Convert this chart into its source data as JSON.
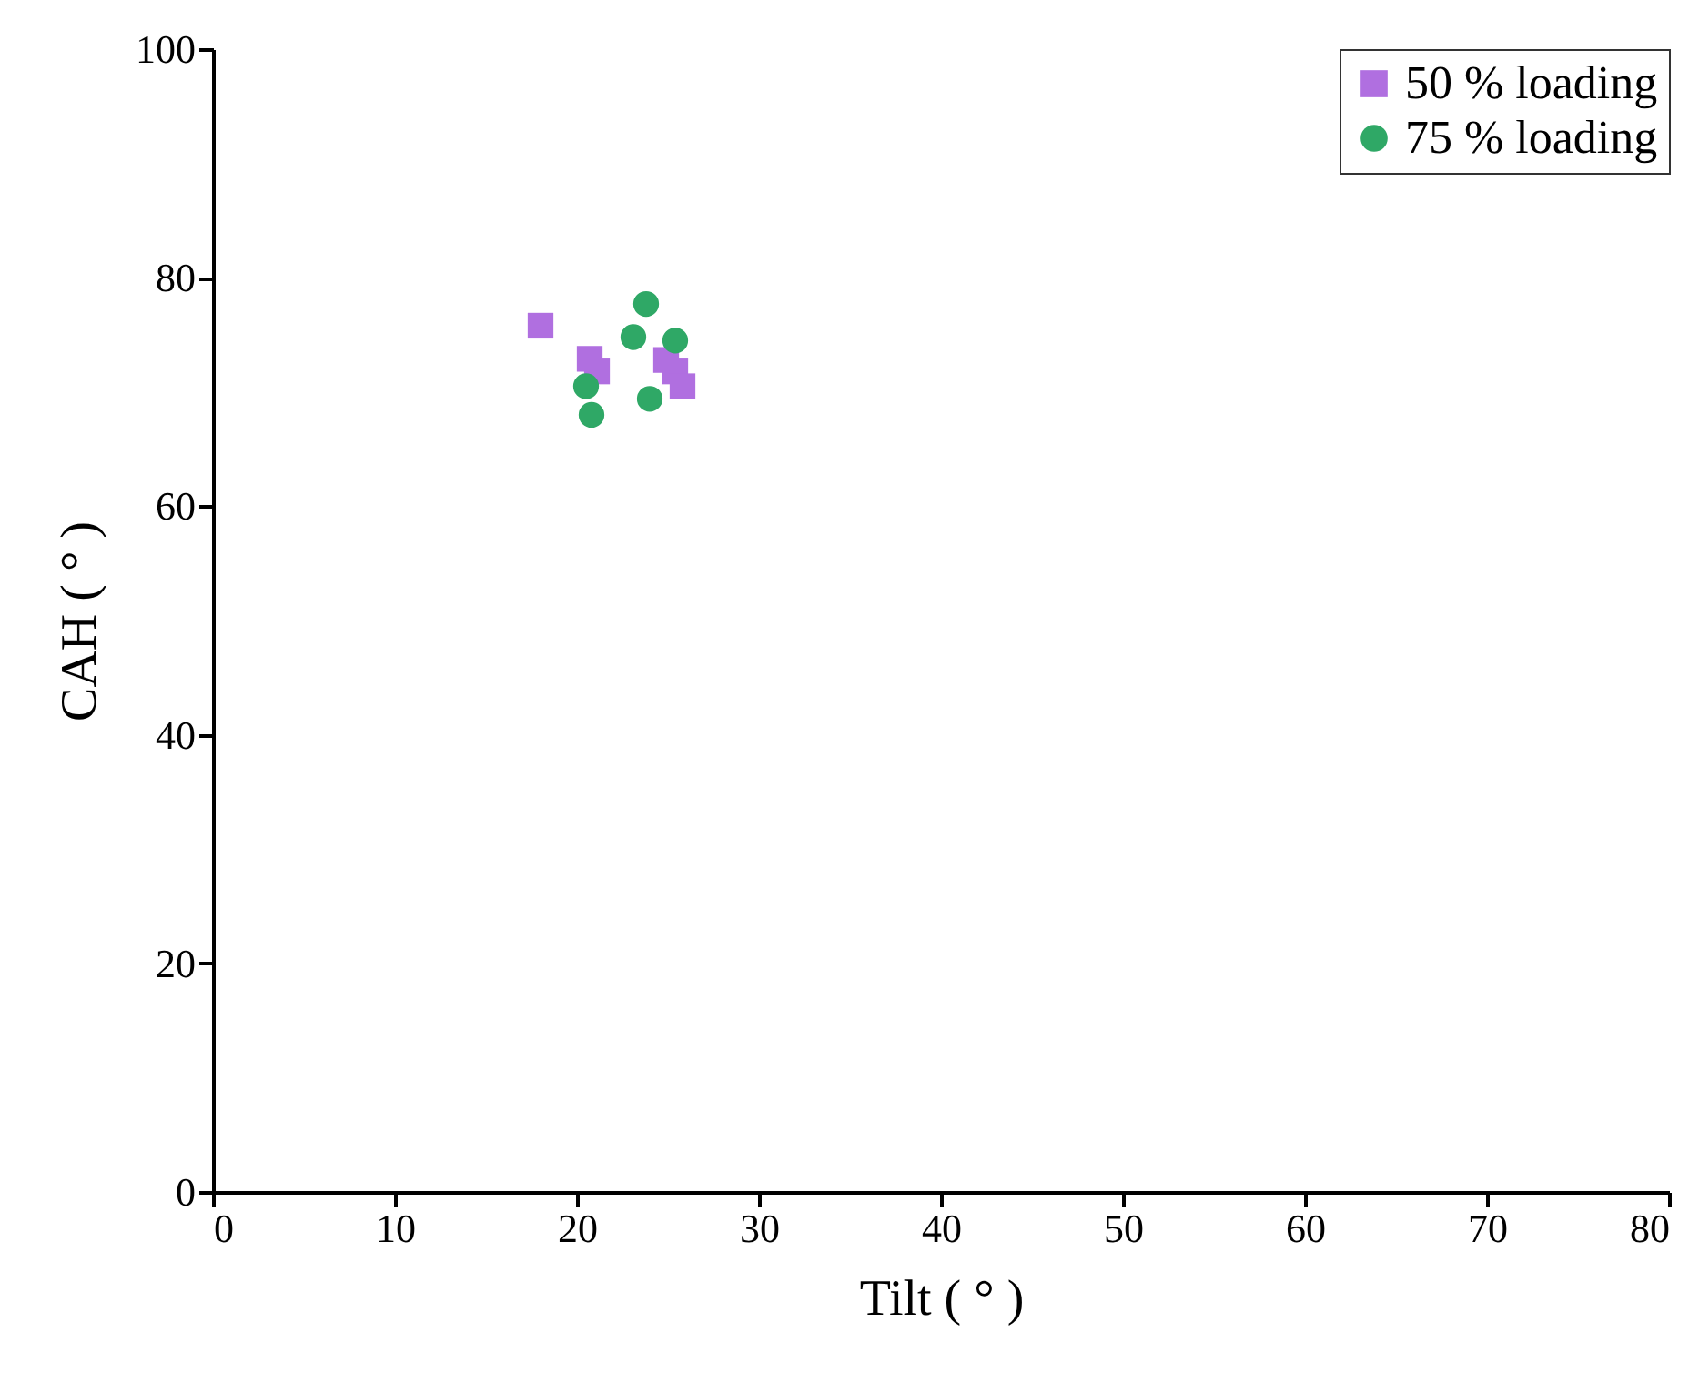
{
  "chart_data": {
    "type": "scatter",
    "xlabel": "Tilt ( ° )",
    "ylabel": "CAH ( ° )",
    "xlim": [
      0,
      80
    ],
    "ylim": [
      0,
      100
    ],
    "xticks": [
      0,
      10,
      20,
      30,
      40,
      50,
      60,
      70,
      80
    ],
    "yticks": [
      0,
      20,
      40,
      60,
      80,
      100
    ],
    "grid": false,
    "legend": "top right",
    "series": [
      {
        "name": "50 % loading",
        "color": "#b06fe0",
        "marker": "square",
        "x": [
          18.0,
          20.7,
          21.1,
          24.9,
          25.4,
          25.8
        ],
        "values": [
          75.8,
          72.9,
          71.8,
          72.8,
          71.8,
          70.5
        ]
      },
      {
        "name": "75 % loading",
        "color": "#2fa866",
        "marker": "circle",
        "x": [
          23.8,
          23.1,
          25.4,
          20.5,
          20.8,
          24.0
        ],
        "values": [
          77.7,
          74.8,
          74.5,
          70.5,
          68.0,
          69.4
        ]
      }
    ]
  }
}
